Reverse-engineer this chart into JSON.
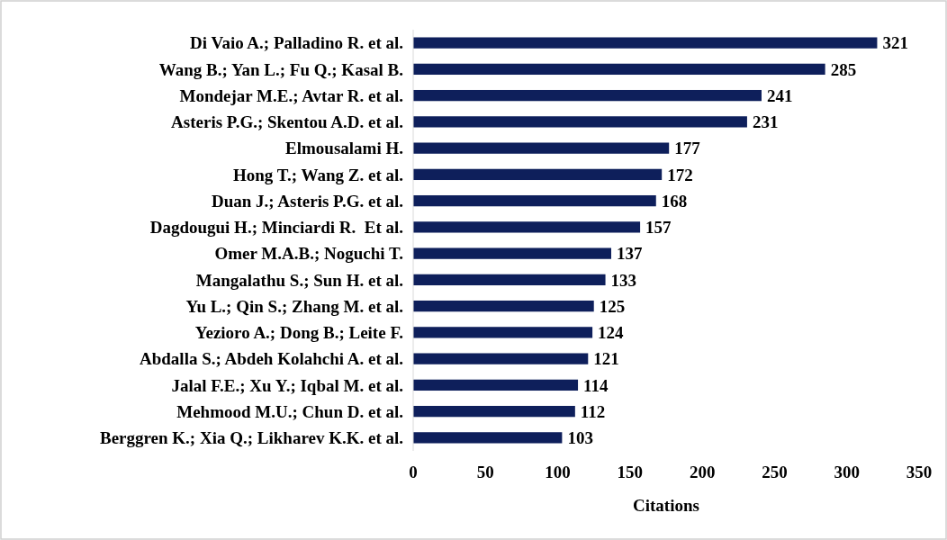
{
  "chart_data": {
    "type": "bar",
    "orientation": "horizontal",
    "xlabel": "Citations",
    "categories": [
      "Di Vaio A.; Palladino R. et al.",
      "Wang B.; Yan L.; Fu Q.; Kasal B.",
      "Mondejar M.E.; Avtar R. et al.",
      "Asteris P.G.; Skentou A.D. et al.",
      "Elmousalami H.",
      "Hong T.; Wang Z. et al.",
      "Duan J.; Asteris P.G. et al.",
      "Dagdougui H.; Minciardi R.  Et al.",
      "Omer M.A.B.; Noguchi T.",
      "Mangalathu S.; Sun H. et al.",
      "Yu L.; Qin S.; Zhang M. et al.",
      "Yezioro A.; Dong B.; Leite F.",
      "Abdalla S.; Abdeh Kolahchi A. et al.",
      "Jalal F.E.; Xu Y.; Iqbal M. et al.",
      "Mehmood M.U.; Chun D. et al.",
      "Berggren K.; Xia Q.; Likharev K.K. et al."
    ],
    "values": [
      321,
      285,
      241,
      231,
      177,
      172,
      168,
      157,
      137,
      133,
      125,
      124,
      121,
      114,
      112,
      103
    ],
    "color": "#0e1f5b",
    "xlim": [
      0,
      350
    ],
    "xticks": [
      0,
      50,
      100,
      150,
      200,
      250,
      300,
      350
    ],
    "data_labels": true
  }
}
